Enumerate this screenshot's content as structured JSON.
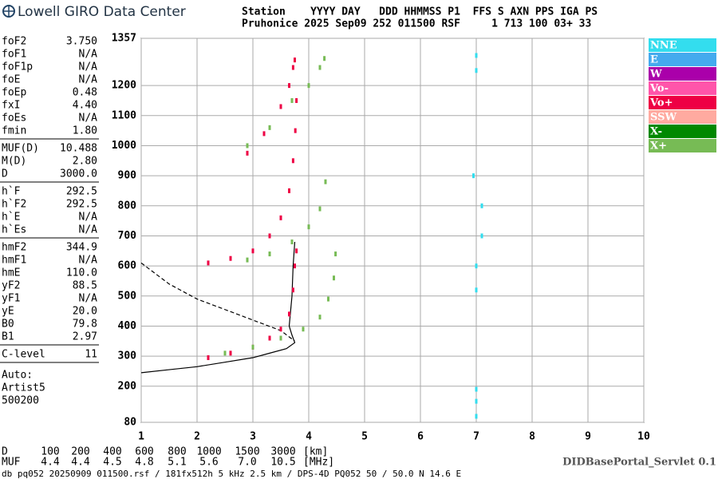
{
  "header": {
    "title": "Lowell GIRO Data Center",
    "line1": "Station    YYYY DAY   DDD HHMMSS P1  FFS S AXN PPS IGA PS",
    "line2": "Pruhonice 2025 Sep09 252 011500 RSF     1 713 100 03+ 33"
  },
  "parameters": [
    [
      [
        "foF2",
        "3.750"
      ],
      [
        "foF1",
        "N/A"
      ],
      [
        "foF1p",
        "N/A"
      ],
      [
        "foE",
        "N/A"
      ],
      [
        "foEp",
        "0.48"
      ],
      [
        "fxI",
        "4.40"
      ],
      [
        "foEs",
        "N/A"
      ],
      [
        "fmin",
        "1.80"
      ]
    ],
    [
      [
        "MUF(D)",
        "10.488"
      ],
      [
        "M(D)",
        "2.80"
      ],
      [
        "D",
        "3000.0"
      ]
    ],
    [
      [
        "h`F",
        "292.5"
      ],
      [
        "h`F2",
        "292.5"
      ],
      [
        "h`E",
        "N/A"
      ],
      [
        "h`Es",
        "N/A"
      ]
    ],
    [
      [
        "hmF2",
        "344.9"
      ],
      [
        "hmF1",
        "N/A"
      ],
      [
        "hmE",
        "110.0"
      ],
      [
        "yF2",
        "88.5"
      ],
      [
        "yF1",
        "N/A"
      ],
      [
        "yE",
        "20.0"
      ],
      [
        "B0",
        "79.8"
      ],
      [
        "B1",
        "2.97"
      ]
    ],
    [
      [
        "C-level",
        "11"
      ]
    ]
  ],
  "auto": [
    "Auto:",
    "Artist5",
    "500200"
  ],
  "muf_table": {
    "d_label": "D",
    "d_values": [
      "100",
      "200",
      "400",
      "600",
      "800",
      "1000",
      "1500",
      "3000"
    ],
    "d_unit": "[km]",
    "muf_label": "MUF",
    "muf_values": [
      "4.4",
      "4.4",
      "4.5",
      "4.8",
      "5.1",
      "5.6",
      "7.0",
      "10.5"
    ],
    "muf_unit": "[MHz]"
  },
  "footer": {
    "file": "db pq052 20250909 011500.rsf / 181fx512h 5 kHz 2.5 km / DPS-4D PQ052 50 / 50.0 N 14.6 E",
    "servlet": "DIDBasePortal_Servlet 0.1"
  },
  "chart_data": {
    "type": "scatter",
    "xlim": [
      1,
      10
    ],
    "xticks": [
      1,
      2,
      3,
      4,
      5,
      6,
      7,
      8,
      9,
      10
    ],
    "ylim": [
      80,
      1357
    ],
    "yticks": [
      80,
      200,
      300,
      400,
      500,
      600,
      700,
      800,
      900,
      1000,
      1100,
      1200,
      1357
    ],
    "grid": true,
    "legend": [
      {
        "name": "NNE",
        "color": "#33ddee"
      },
      {
        "name": "E",
        "color": "#44aaee"
      },
      {
        "name": "W",
        "color": "#aa00aa"
      },
      {
        "name": "Vo-",
        "color": "#ff55aa"
      },
      {
        "name": "Vo+",
        "color": "#ee0044"
      },
      {
        "name": "SSW",
        "color": "#ffaaa0"
      },
      {
        "name": "X-",
        "color": "#008800"
      },
      {
        "name": "X+",
        "color": "#77bb55"
      }
    ],
    "series": [
      {
        "legend": 4,
        "x": [
          2.2,
          2.6,
          3.0,
          3.3,
          3.5,
          3.65,
          3.72,
          3.75,
          3.78,
          2.2,
          2.6,
          3.0,
          3.3,
          3.5,
          3.65,
          3.72,
          3.76,
          3.78,
          2.9,
          3.2,
          3.5,
          3.65,
          3.72,
          3.75
        ],
        "y": [
          295,
          310,
          330,
          360,
          390,
          440,
          520,
          600,
          650,
          610,
          625,
          650,
          700,
          760,
          850,
          950,
          1050,
          1150,
          975,
          1040,
          1130,
          1200,
          1260,
          1285
        ]
      },
      {
        "legend": 7,
        "x": [
          2.5,
          3.0,
          3.5,
          3.9,
          4.2,
          4.35,
          4.45,
          4.48,
          2.9,
          3.3,
          3.7,
          4.0,
          4.2,
          4.3,
          2.9,
          3.3,
          3.7,
          4.0,
          4.2,
          4.28
        ],
        "y": [
          310,
          330,
          360,
          390,
          430,
          490,
          560,
          640,
          620,
          640,
          680,
          730,
          790,
          880,
          1000,
          1060,
          1150,
          1200,
          1260,
          1290
        ]
      },
      {
        "legend": 0,
        "x": [
          7,
          7,
          7,
          7,
          7,
          7.1,
          7.1,
          6.95,
          7,
          7
        ],
        "y": [
          100,
          150,
          190,
          520,
          600,
          700,
          800,
          900,
          1250,
          1300
        ]
      }
    ],
    "profile_curves": [
      {
        "dashed": false,
        "x": [
          1,
          1.5,
          2.0,
          2.5,
          3.0,
          3.3,
          3.6,
          3.75,
          3.7,
          3.65,
          3.7,
          3.72,
          3.75
        ],
        "y": [
          245,
          255,
          265,
          280,
          295,
          310,
          325,
          345,
          370,
          400,
          500,
          600,
          680
        ]
      },
      {
        "dashed": true,
        "x": [
          1,
          1.5,
          2.0,
          2.5,
          3.0,
          3.5,
          3.75
        ],
        "y": [
          610,
          540,
          490,
          455,
          420,
          385,
          350
        ]
      }
    ]
  }
}
